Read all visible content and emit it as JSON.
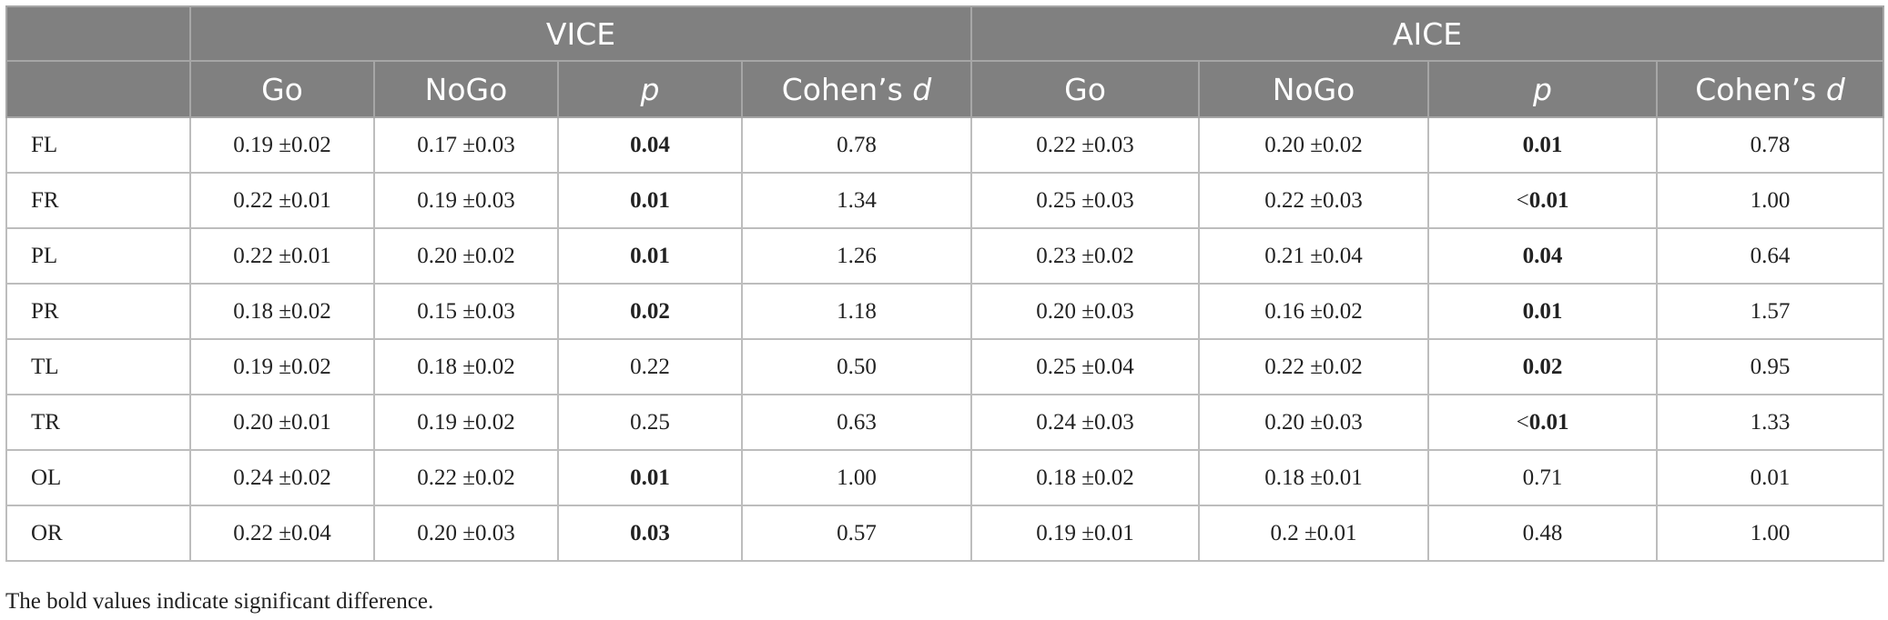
{
  "header": {
    "groups": [
      "VICE",
      "AICE"
    ],
    "columns": [
      {
        "text": "Go",
        "suffix": ""
      },
      {
        "text": "NoGo",
        "suffix": ""
      },
      {
        "text": "p",
        "suffix": "",
        "italic": true
      },
      {
        "text": "Cohen’s ",
        "suffix": "d"
      },
      {
        "text": "Go",
        "suffix": ""
      },
      {
        "text": "NoGo",
        "suffix": ""
      },
      {
        "text": "p",
        "suffix": "",
        "italic": true
      },
      {
        "text": "Cohen’s ",
        "suffix": "d"
      }
    ]
  },
  "rows": [
    {
      "label": "FL",
      "cells": [
        {
          "text": "0.19 ±0.02"
        },
        {
          "text": "0.17 ±0.03"
        },
        {
          "prefix": "",
          "text": "0.04",
          "bold": true
        },
        {
          "text": "0.78"
        },
        {
          "text": "0.22 ±0.03"
        },
        {
          "text": "0.20 ±0.02"
        },
        {
          "prefix": "",
          "text": "0.01",
          "bold": true
        },
        {
          "text": "0.78"
        }
      ]
    },
    {
      "label": "FR",
      "cells": [
        {
          "text": "0.22 ±0.01"
        },
        {
          "text": "0.19 ±0.03"
        },
        {
          "prefix": "",
          "text": "0.01",
          "bold": true
        },
        {
          "text": "1.34"
        },
        {
          "text": "0.25 ±0.03"
        },
        {
          "text": "0.22 ±0.03"
        },
        {
          "prefix": "<",
          "text": "0.01",
          "bold": true
        },
        {
          "text": "1.00"
        }
      ]
    },
    {
      "label": "PL",
      "cells": [
        {
          "text": "0.22 ±0.01"
        },
        {
          "text": "0.20 ±0.02"
        },
        {
          "prefix": "",
          "text": "0.01",
          "bold": true
        },
        {
          "text": "1.26"
        },
        {
          "text": "0.23 ±0.02"
        },
        {
          "text": "0.21 ±0.04"
        },
        {
          "prefix": "",
          "text": "0.04",
          "bold": true
        },
        {
          "text": "0.64"
        }
      ]
    },
    {
      "label": "PR",
      "cells": [
        {
          "text": "0.18 ±0.02"
        },
        {
          "text": "0.15 ±0.03"
        },
        {
          "prefix": "",
          "text": "0.02",
          "bold": true
        },
        {
          "text": "1.18"
        },
        {
          "text": "0.20 ±0.03"
        },
        {
          "text": "0.16 ±0.02"
        },
        {
          "prefix": "",
          "text": "0.01",
          "bold": true
        },
        {
          "text": "1.57"
        }
      ]
    },
    {
      "label": "TL",
      "cells": [
        {
          "text": "0.19 ±0.02"
        },
        {
          "text": "0.18 ±0.02"
        },
        {
          "prefix": "",
          "text": "0.22",
          "bold": false
        },
        {
          "text": "0.50"
        },
        {
          "text": "0.25 ±0.04"
        },
        {
          "text": "0.22 ±0.02"
        },
        {
          "prefix": "",
          "text": "0.02",
          "bold": true
        },
        {
          "text": "0.95"
        }
      ]
    },
    {
      "label": "TR",
      "cells": [
        {
          "text": "0.20 ±0.01"
        },
        {
          "text": "0.19 ±0.02"
        },
        {
          "prefix": "",
          "text": "0.25",
          "bold": false
        },
        {
          "text": "0.63"
        },
        {
          "text": "0.24 ±0.03"
        },
        {
          "text": "0.20 ±0.03"
        },
        {
          "prefix": "<",
          "text": "0.01",
          "bold": true
        },
        {
          "text": "1.33"
        }
      ]
    },
    {
      "label": "OL",
      "cells": [
        {
          "text": "0.24 ±0.02"
        },
        {
          "text": "0.22 ±0.02"
        },
        {
          "prefix": "",
          "text": "0.01",
          "bold": true
        },
        {
          "text": "1.00"
        },
        {
          "text": "0.18 ±0.02"
        },
        {
          "text": "0.18 ±0.01"
        },
        {
          "prefix": "",
          "text": "0.71",
          "bold": false
        },
        {
          "text": "0.01"
        }
      ]
    },
    {
      "label": "OR",
      "cells": [
        {
          "text": "0.22 ±0.04"
        },
        {
          "text": "0.20 ±0.03"
        },
        {
          "prefix": "",
          "text": "0.03",
          "bold": true
        },
        {
          "text": "0.57"
        },
        {
          "text": "0.19 ±0.01"
        },
        {
          "text": "0.2 ±0.01"
        },
        {
          "prefix": "",
          "text": "0.48",
          "bold": false
        },
        {
          "text": "1.00"
        }
      ]
    }
  ],
  "footnote": "The bold values indicate significant difference."
}
